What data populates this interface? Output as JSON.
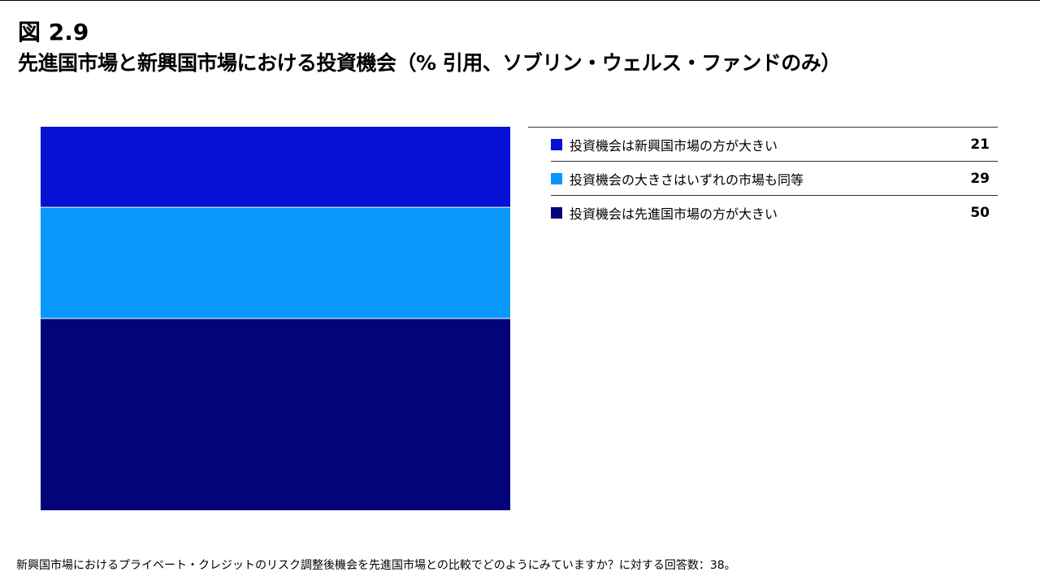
{
  "figure_label": "図 2.9",
  "footnote": "新興国市場におけるプライベート・クレジットのリスク調整後機会を先進国市場との比較でどのようにみていますか？に対する回答数：38。",
  "chart_data": {
    "type": "bar",
    "stacked": true,
    "orientation": "vertical-stack",
    "title": "先進国市場と新興国市場における投資機会（% 引用、ソブリン・ウェルス・ファンドのみ）",
    "ylim": [
      0,
      100
    ],
    "grid": false,
    "legend_position": "right",
    "series": [
      {
        "name": "投資機会は新興国市場の方が大きい",
        "values": [
          21
        ],
        "color": "#0511D3"
      },
      {
        "name": "投資機会の大きさはいずれの市場も同等",
        "values": [
          29
        ],
        "color": "#0898FB"
      },
      {
        "name": "投資機会は先進国市場の方が大きい",
        "values": [
          50
        ],
        "color": "#03037A"
      }
    ]
  }
}
